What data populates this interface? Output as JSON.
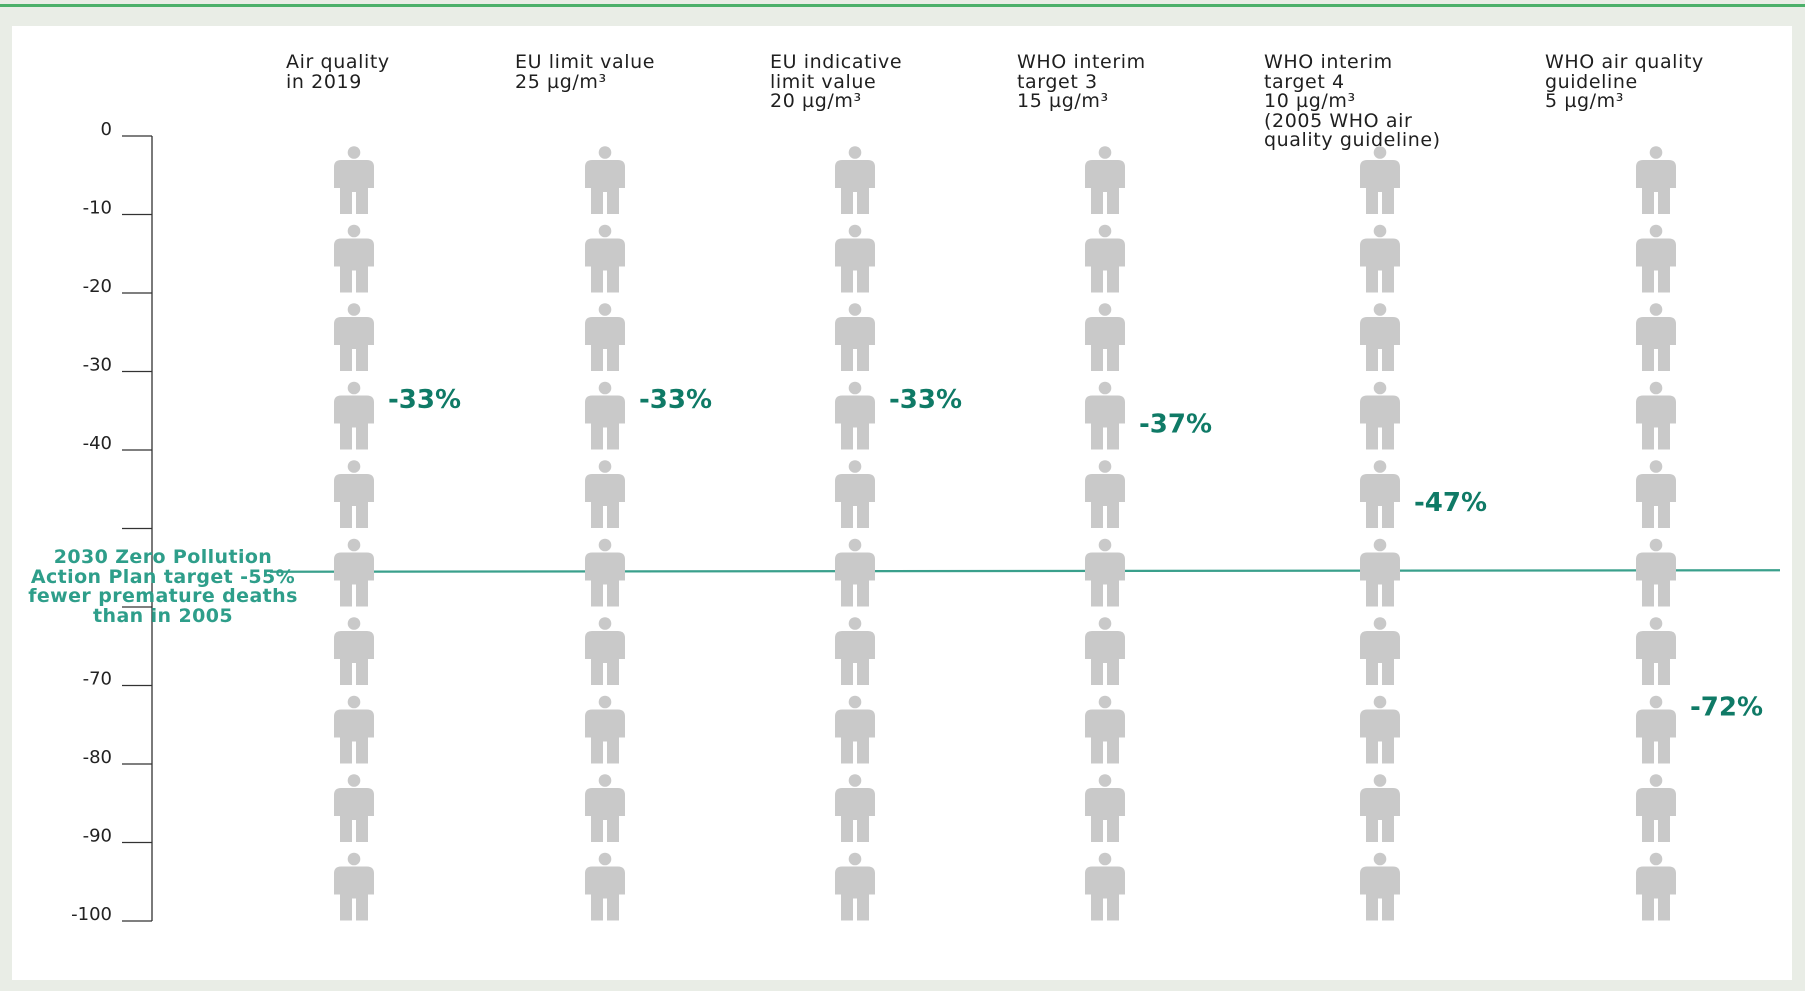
{
  "colors": {
    "active": "#0f7a66",
    "inactive": "#c9c9c9",
    "target_line": "#3aa08c",
    "axis": "#333333"
  },
  "icon": "person-icon",
  "target_note": "2030 Zero Pollution Action Plan target -55% fewer premature deaths than in 2005",
  "chart_data": {
    "type": "pictogram",
    "title": "",
    "xlabel": "",
    "ylabel": "",
    "ylim": [
      -100,
      0
    ],
    "yticks": [
      0,
      -10,
      -20,
      -30,
      -40,
      -50,
      -60,
      -70,
      -80,
      -90,
      -100
    ],
    "ytick_labels": [
      "0",
      "-10",
      "-20",
      "-30",
      "-40",
      "",
      "",
      "-70",
      "-80",
      "-90",
      "-100"
    ],
    "icons_per_column": 10,
    "percent_per_icon": 10,
    "target_value": -55,
    "categories": [
      "Air quality\nin 2019",
      "EU limit value\n25 µg/m³",
      "EU indicative\nlimit value\n20 µg/m³",
      "WHO interim\ntarget 3\n15 µg/m³",
      "WHO interim\ntarget 4\n10 µg/m³\n(2005 WHO air\nquality guideline)",
      "WHO air quality\nguideline\n5 µg/m³"
    ],
    "values": [
      -33,
      -33,
      -33,
      -37,
      -47,
      -72
    ],
    "value_labels": [
      "-33%",
      "-33%",
      "-33%",
      "-37%",
      "-47%",
      "-72%"
    ]
  }
}
